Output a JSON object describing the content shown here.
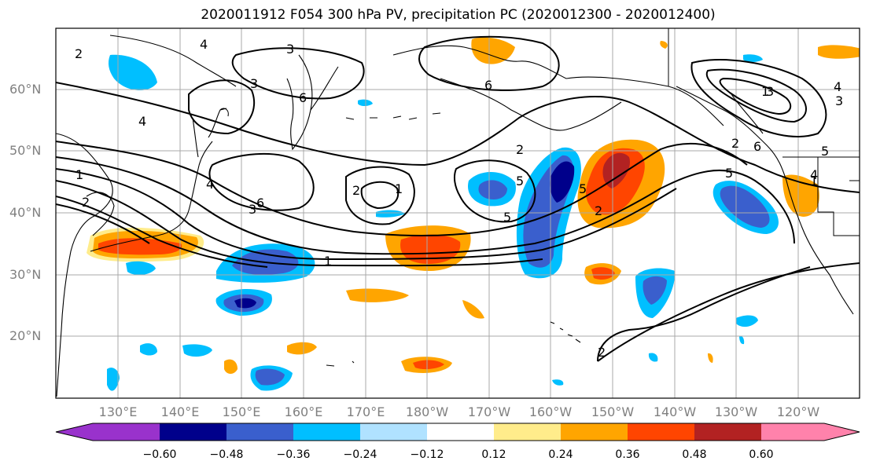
{
  "title": "2020011912 F054 300 hPa PV, precipitation PC (2020012300 - 2020012400)",
  "map": {
    "lat_labels": [
      "60°N",
      "50°N",
      "40°N",
      "30°N",
      "20°N"
    ],
    "lon_labels": [
      "130°E",
      "140°E",
      "150°E",
      "160°E",
      "170°E",
      "180°W",
      "170°W",
      "160°W",
      "150°W",
      "140°W",
      "130°W",
      "120°W"
    ],
    "contour_labels": [
      "2",
      "3",
      "4",
      "3",
      "6",
      "4",
      "1",
      "2",
      "4",
      "3",
      "6",
      "2",
      "1",
      "6",
      "2",
      "1",
      "3",
      "5",
      "5",
      "5",
      "2",
      "1",
      "4",
      "3",
      "2",
      "6",
      "5",
      "4",
      "5",
      "1",
      "2"
    ]
  },
  "colorbar": {
    "ticks": [
      "−0.60",
      "−0.48",
      "−0.36",
      "−0.24",
      "−0.12",
      "0.12",
      "0.24",
      "0.36",
      "0.48",
      "0.60"
    ],
    "colors": [
      "#9932cc",
      "#00008b",
      "#3a5fcd",
      "#00bfff",
      "#b0e2ff",
      "#ffffff",
      "#ffec8b",
      "#ffa500",
      "#ff4500",
      "#b22222",
      "#ff82ab"
    ]
  }
}
